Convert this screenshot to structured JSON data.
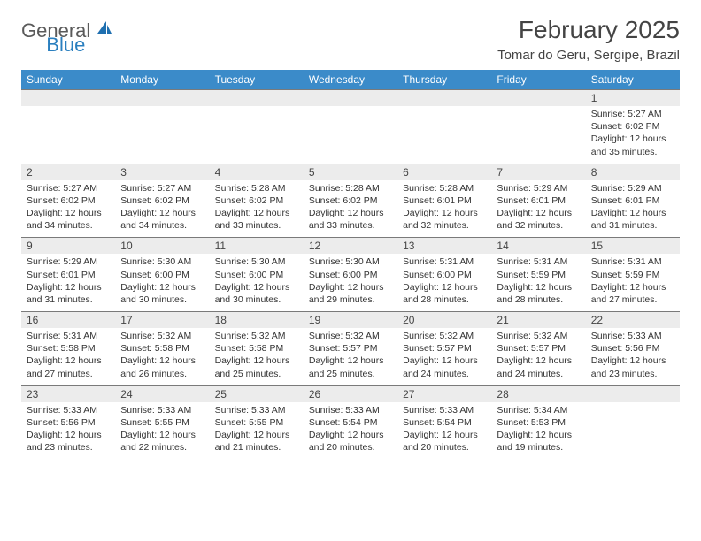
{
  "logo": {
    "text1": "General",
    "text2": "Blue"
  },
  "title": "February 2025",
  "location": "Tomar do Geru, Sergipe, Brazil",
  "colors": {
    "header_bg": "#3b8bc9",
    "header_text": "#ffffff",
    "daynum_bg": "#ececec",
    "rule": "#7a7a7a",
    "logo_gray": "#5a5a5a",
    "logo_blue": "#2a7fbf"
  },
  "daysOfWeek": [
    "Sunday",
    "Monday",
    "Tuesday",
    "Wednesday",
    "Thursday",
    "Friday",
    "Saturday"
  ],
  "weeks": [
    [
      {
        "blank": true
      },
      {
        "blank": true
      },
      {
        "blank": true
      },
      {
        "blank": true
      },
      {
        "blank": true
      },
      {
        "blank": true
      },
      {
        "n": "1",
        "sunrise": "Sunrise: 5:27 AM",
        "sunset": "Sunset: 6:02 PM",
        "daylight": "Daylight: 12 hours and 35 minutes."
      }
    ],
    [
      {
        "n": "2",
        "sunrise": "Sunrise: 5:27 AM",
        "sunset": "Sunset: 6:02 PM",
        "daylight": "Daylight: 12 hours and 34 minutes."
      },
      {
        "n": "3",
        "sunrise": "Sunrise: 5:27 AM",
        "sunset": "Sunset: 6:02 PM",
        "daylight": "Daylight: 12 hours and 34 minutes."
      },
      {
        "n": "4",
        "sunrise": "Sunrise: 5:28 AM",
        "sunset": "Sunset: 6:02 PM",
        "daylight": "Daylight: 12 hours and 33 minutes."
      },
      {
        "n": "5",
        "sunrise": "Sunrise: 5:28 AM",
        "sunset": "Sunset: 6:02 PM",
        "daylight": "Daylight: 12 hours and 33 minutes."
      },
      {
        "n": "6",
        "sunrise": "Sunrise: 5:28 AM",
        "sunset": "Sunset: 6:01 PM",
        "daylight": "Daylight: 12 hours and 32 minutes."
      },
      {
        "n": "7",
        "sunrise": "Sunrise: 5:29 AM",
        "sunset": "Sunset: 6:01 PM",
        "daylight": "Daylight: 12 hours and 32 minutes."
      },
      {
        "n": "8",
        "sunrise": "Sunrise: 5:29 AM",
        "sunset": "Sunset: 6:01 PM",
        "daylight": "Daylight: 12 hours and 31 minutes."
      }
    ],
    [
      {
        "n": "9",
        "sunrise": "Sunrise: 5:29 AM",
        "sunset": "Sunset: 6:01 PM",
        "daylight": "Daylight: 12 hours and 31 minutes."
      },
      {
        "n": "10",
        "sunrise": "Sunrise: 5:30 AM",
        "sunset": "Sunset: 6:00 PM",
        "daylight": "Daylight: 12 hours and 30 minutes."
      },
      {
        "n": "11",
        "sunrise": "Sunrise: 5:30 AM",
        "sunset": "Sunset: 6:00 PM",
        "daylight": "Daylight: 12 hours and 30 minutes."
      },
      {
        "n": "12",
        "sunrise": "Sunrise: 5:30 AM",
        "sunset": "Sunset: 6:00 PM",
        "daylight": "Daylight: 12 hours and 29 minutes."
      },
      {
        "n": "13",
        "sunrise": "Sunrise: 5:31 AM",
        "sunset": "Sunset: 6:00 PM",
        "daylight": "Daylight: 12 hours and 28 minutes."
      },
      {
        "n": "14",
        "sunrise": "Sunrise: 5:31 AM",
        "sunset": "Sunset: 5:59 PM",
        "daylight": "Daylight: 12 hours and 28 minutes."
      },
      {
        "n": "15",
        "sunrise": "Sunrise: 5:31 AM",
        "sunset": "Sunset: 5:59 PM",
        "daylight": "Daylight: 12 hours and 27 minutes."
      }
    ],
    [
      {
        "n": "16",
        "sunrise": "Sunrise: 5:31 AM",
        "sunset": "Sunset: 5:58 PM",
        "daylight": "Daylight: 12 hours and 27 minutes."
      },
      {
        "n": "17",
        "sunrise": "Sunrise: 5:32 AM",
        "sunset": "Sunset: 5:58 PM",
        "daylight": "Daylight: 12 hours and 26 minutes."
      },
      {
        "n": "18",
        "sunrise": "Sunrise: 5:32 AM",
        "sunset": "Sunset: 5:58 PM",
        "daylight": "Daylight: 12 hours and 25 minutes."
      },
      {
        "n": "19",
        "sunrise": "Sunrise: 5:32 AM",
        "sunset": "Sunset: 5:57 PM",
        "daylight": "Daylight: 12 hours and 25 minutes."
      },
      {
        "n": "20",
        "sunrise": "Sunrise: 5:32 AM",
        "sunset": "Sunset: 5:57 PM",
        "daylight": "Daylight: 12 hours and 24 minutes."
      },
      {
        "n": "21",
        "sunrise": "Sunrise: 5:32 AM",
        "sunset": "Sunset: 5:57 PM",
        "daylight": "Daylight: 12 hours and 24 minutes."
      },
      {
        "n": "22",
        "sunrise": "Sunrise: 5:33 AM",
        "sunset": "Sunset: 5:56 PM",
        "daylight": "Daylight: 12 hours and 23 minutes."
      }
    ],
    [
      {
        "n": "23",
        "sunrise": "Sunrise: 5:33 AM",
        "sunset": "Sunset: 5:56 PM",
        "daylight": "Daylight: 12 hours and 23 minutes."
      },
      {
        "n": "24",
        "sunrise": "Sunrise: 5:33 AM",
        "sunset": "Sunset: 5:55 PM",
        "daylight": "Daylight: 12 hours and 22 minutes."
      },
      {
        "n": "25",
        "sunrise": "Sunrise: 5:33 AM",
        "sunset": "Sunset: 5:55 PM",
        "daylight": "Daylight: 12 hours and 21 minutes."
      },
      {
        "n": "26",
        "sunrise": "Sunrise: 5:33 AM",
        "sunset": "Sunset: 5:54 PM",
        "daylight": "Daylight: 12 hours and 20 minutes."
      },
      {
        "n": "27",
        "sunrise": "Sunrise: 5:33 AM",
        "sunset": "Sunset: 5:54 PM",
        "daylight": "Daylight: 12 hours and 20 minutes."
      },
      {
        "n": "28",
        "sunrise": "Sunrise: 5:34 AM",
        "sunset": "Sunset: 5:53 PM",
        "daylight": "Daylight: 12 hours and 19 minutes."
      },
      {
        "blank": true
      }
    ]
  ]
}
